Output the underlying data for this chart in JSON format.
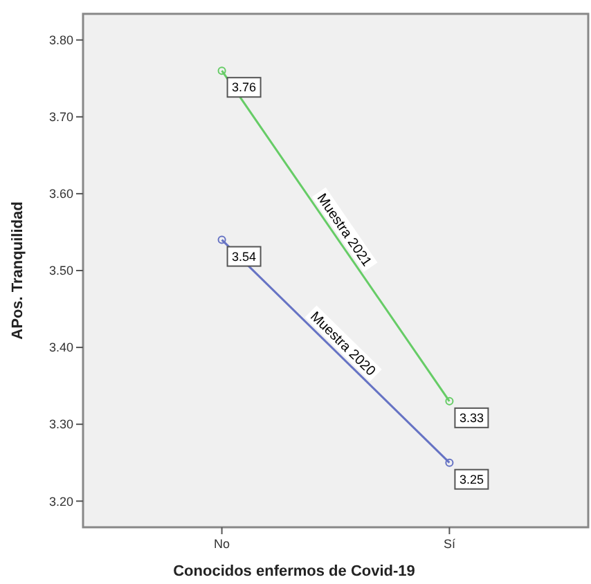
{
  "chart_data": {
    "type": "line",
    "xlabel": "Conocidos enfermos de Covid-19",
    "ylabel": "APos. Tranquilidad",
    "categories": [
      "No",
      "Sí"
    ],
    "series": [
      {
        "name": "Muestra 2021",
        "color": "#66cc66",
        "values": [
          3.76,
          3.33
        ]
      },
      {
        "name": "Muestra 2020",
        "color": "#6673c4",
        "values": [
          3.54,
          3.25
        ]
      }
    ],
    "ylim": [
      3.166,
      3.834
    ],
    "yticks": [
      {
        "value": 3.2,
        "label": "3.20"
      },
      {
        "value": 3.3,
        "label": "3.30"
      },
      {
        "value": 3.4,
        "label": "3.40"
      },
      {
        "value": 3.5,
        "label": "3.50"
      },
      {
        "value": 3.6,
        "label": "3.60"
      },
      {
        "value": 3.7,
        "label": "3.70"
      },
      {
        "value": 3.8,
        "label": "3.80"
      }
    ],
    "grid": false,
    "legend": false,
    "marker": "circle",
    "line_style": "solid",
    "data_labels": true
  }
}
